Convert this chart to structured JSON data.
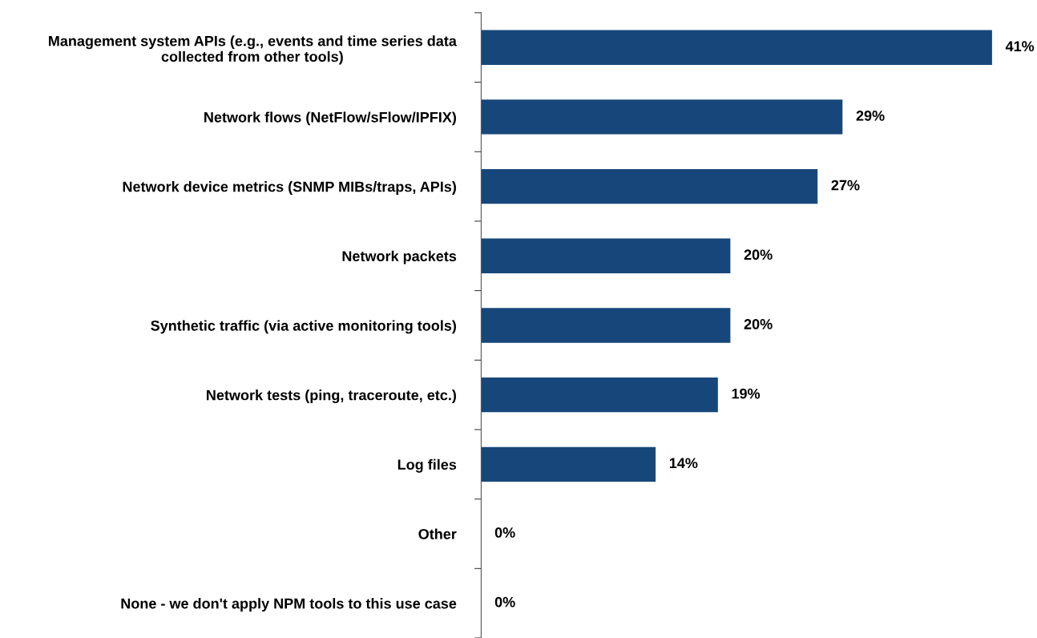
{
  "chart_data": {
    "type": "bar",
    "orientation": "horizontal",
    "categories": [
      "Management system APIs (e.g., events and time series data\ncollected from other tools)",
      "Network flows (NetFlow/sFlow/IPFIX)",
      "Network device metrics (SNMP MIBs/traps, APIs)",
      "Network packets",
      "Synthetic traffic (via active monitoring tools)",
      "Network tests (ping, traceroute, etc.)",
      "Log files",
      "Other",
      "None - we don't apply NPM tools to this use case"
    ],
    "values": [
      41,
      29,
      27,
      20,
      20,
      19,
      14,
      0,
      0
    ],
    "value_labels": [
      "41%",
      "29%",
      "27%",
      "20%",
      "20%",
      "19%",
      "14%",
      "0%",
      "0%"
    ],
    "color": "#17477a",
    "grid": false,
    "legend": false,
    "tick_labels": "y"
  }
}
